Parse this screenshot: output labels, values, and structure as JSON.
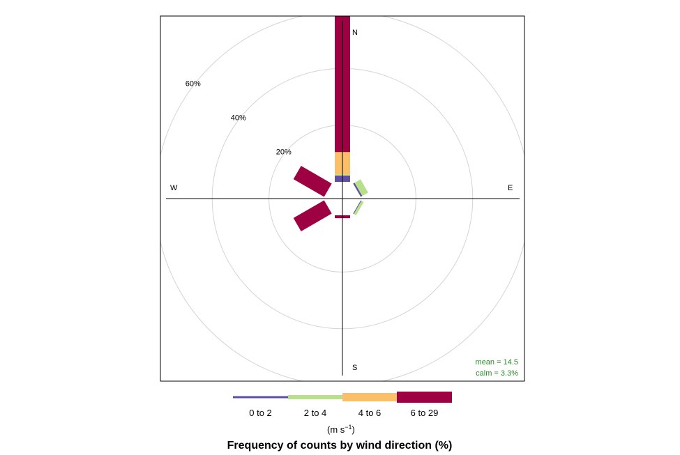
{
  "chart_data": {
    "type": "windrose",
    "title": "Frequency of counts by wind direction (%)",
    "compass": {
      "n": "N",
      "e": "E",
      "s": "S",
      "w": "W"
    },
    "ring_values": [
      20,
      40,
      60
    ],
    "ring_labels": [
      "20%",
      "40%",
      "60%"
    ],
    "unit_label": "(m s",
    "unit_exp": "−1",
    "unit_close": ")",
    "stats": {
      "mean": "mean = 14.5",
      "calm": "calm = 3.3%"
    },
    "paddle_directions_deg": [
      0,
      60,
      120,
      180,
      240,
      300
    ],
    "bins": [
      {
        "label": "0 to 2",
        "color": "#5e4fa2"
      },
      {
        "label": "2 to 4",
        "color": "#b8e08b"
      },
      {
        "label": "4 to 6",
        "color": "#fbbf6a"
      },
      {
        "label": "6 to 29",
        "color": "#9e0142"
      }
    ],
    "series": [
      {
        "direction": 0,
        "cumulative": [
          2.2,
          2.6,
          10.5,
          66.0
        ]
      },
      {
        "direction": 60,
        "cumulative": [
          0.6,
          3.0,
          3.0,
          3.0
        ]
      },
      {
        "direction": 120,
        "cumulative": [
          0.3,
          1.2,
          1.2,
          1.2
        ]
      },
      {
        "direction": 180,
        "cumulative": [
          0,
          0,
          0,
          1.0
        ]
      },
      {
        "direction": 240,
        "cumulative": [
          0,
          0,
          0,
          12.5
        ]
      },
      {
        "direction": 300,
        "cumulative": [
          0,
          0,
          0,
          12.5
        ]
      }
    ]
  }
}
